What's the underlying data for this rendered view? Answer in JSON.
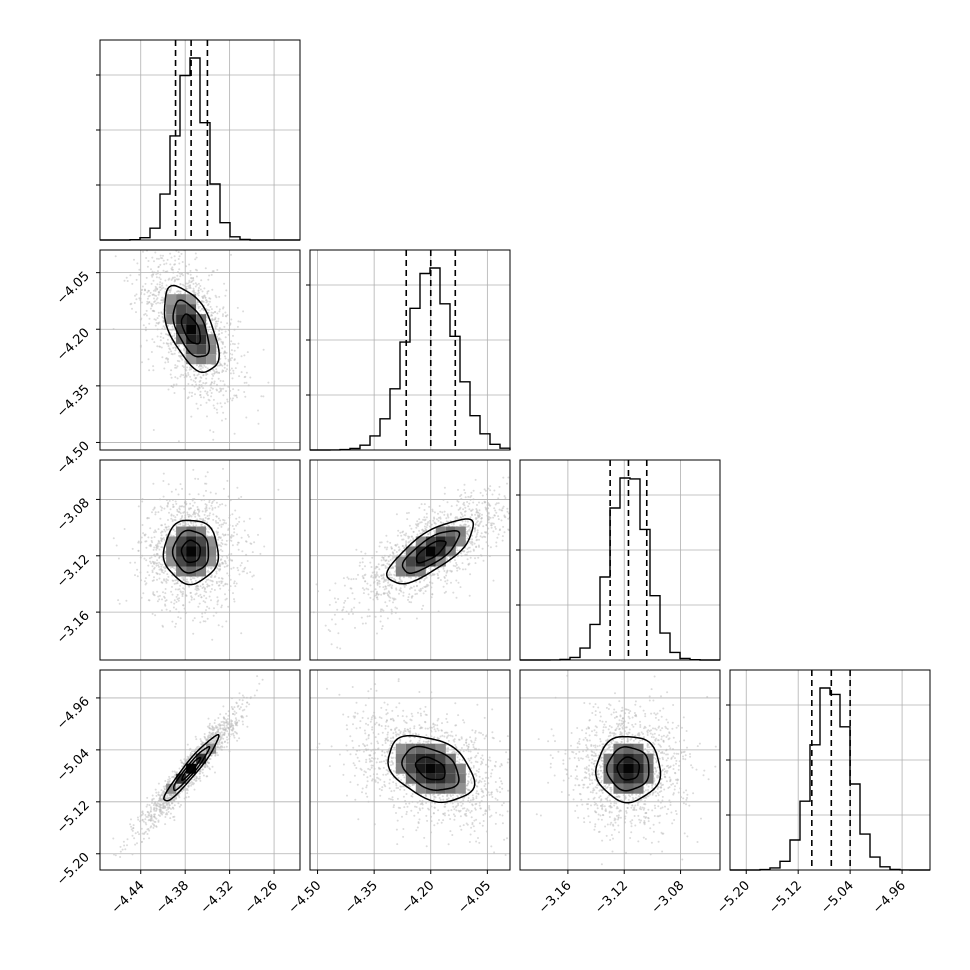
{
  "chart_data": {
    "type": "corner",
    "grid": true,
    "colors": {
      "hist": "#000000",
      "contour": "#000000",
      "points": "#bdbdbd",
      "quantile": "#000000"
    },
    "parameters": [
      {
        "range": [
          -4.495,
          -4.225
        ],
        "ticks": [
          "-4.44",
          "-4.38",
          "-4.32",
          "-4.26"
        ],
        "tick_values": [
          -4.44,
          -4.38,
          -4.32,
          -4.26
        ],
        "median": -4.372,
        "q16": -4.393,
        "q84": -4.35,
        "sigma": 0.021
      },
      {
        "range": [
          -4.52,
          -3.99
        ],
        "ticks": [
          "-4.50",
          "-4.35",
          "-4.20",
          "-4.05"
        ],
        "tick_values": [
          -4.5,
          -4.35,
          -4.2,
          -4.05
        ],
        "median": -4.2,
        "q16": -4.265,
        "q84": -4.135,
        "sigma": 0.065
      },
      {
        "range": [
          -3.194,
          -3.052
        ],
        "ticks": [
          "-3.16",
          "-3.12",
          "-3.08"
        ],
        "tick_values": [
          -3.16,
          -3.12,
          -3.08
        ],
        "median": -3.117,
        "q16": -3.13,
        "q84": -3.104,
        "sigma": 0.013
      },
      {
        "range": [
          -5.225,
          -4.917
        ],
        "ticks": [
          "-5.20",
          "-5.12",
          "-5.04",
          "-4.96"
        ],
        "tick_values": [
          -5.2,
          -5.12,
          -5.04,
          -4.96
        ],
        "median": -5.069,
        "q16": -5.099,
        "q84": -5.04,
        "sigma": 0.029
      }
    ],
    "correlations": {
      "1-0": -0.55,
      "2-0": 0.0,
      "2-1": 0.75,
      "3-0": 0.95,
      "3-1": -0.35,
      "3-2": 0.0
    },
    "bins": 20
  }
}
